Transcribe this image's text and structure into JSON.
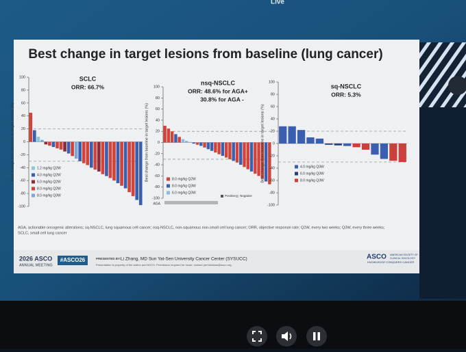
{
  "live": "Live",
  "slide": {
    "title": "Best change in target lesions from baseline (lung cancer)",
    "footnote": [
      "AGA, actionable oncogenic alterations; sq-NSCLC, lung squamous cell cancer; nsq-NSCLC, non-squamous non-small cell lung cancer; ORR, objective response rate; Q2W, every two weeks; Q3W, every three weeks;",
      "SCLC, small cell lung cancer"
    ],
    "meeting": [
      "2026 ASCO",
      "ANNUAL MEETING"
    ],
    "hashtag": "#ASCO26",
    "presented_by": "PRESENTED BY:",
    "presenter": "Li Zhang, MD   Sun Yat-Sen University Cancer Center (SYSUCC)",
    "permission": "Presentation is property of the author and ASCO. Permission required for reuse; contact permissions@asco.org.",
    "logo": "ASCO",
    "logo_sub": [
      "AMERICAN SOCIETY OF",
      "CLINICAL ONCOLOGY"
    ],
    "logo_tag": "KNOWLEDGE CONQUERS CANCER"
  },
  "chart_data": [
    {
      "type": "bar",
      "title": "SCLC",
      "subtitle": [
        "ORR: 66.7%"
      ],
      "y_label": "Best change from baseline in target lesions (%)",
      "ylim": [
        -100,
        100
      ],
      "yticks": [
        100,
        80,
        60,
        40,
        20,
        0,
        -20,
        -40,
        -60,
        -80,
        -100
      ],
      "ref_lines": [
        20,
        -30
      ],
      "series": [
        {
          "name": "1.2 mg/kg Q2W",
          "color": "#8fc6d6",
          "values": [
            null,
            null,
            8,
            null,
            null,
            null,
            null,
            null,
            null,
            null,
            null,
            null,
            null,
            null,
            null,
            null,
            null,
            null,
            null,
            null,
            null,
            null,
            null,
            null,
            null,
            null,
            null,
            null,
            null,
            null
          ]
        },
        {
          "name": "4.0 mg/kg Q2W",
          "color": "#3a5fb0",
          "values": [
            null,
            18,
            null,
            null,
            null,
            null,
            -8,
            null,
            null,
            null,
            -18,
            null,
            null,
            -30,
            null,
            null,
            -40,
            null,
            null,
            null,
            -53,
            null,
            null,
            -64,
            null,
            -72,
            null,
            null,
            -90,
            -98
          ]
        },
        {
          "name": "6.0 mg/kg Q2W",
          "color": "#8b2c3a",
          "values": [
            null,
            null,
            null,
            null,
            -4,
            null,
            null,
            null,
            null,
            -15,
            null,
            null,
            null,
            null,
            null,
            null,
            null,
            null,
            -46,
            null,
            null,
            null,
            null,
            null,
            null,
            null,
            null,
            null,
            null,
            null
          ]
        },
        {
          "name": "8.0 mg/kg Q2W",
          "color": "#d0443a",
          "values": [
            45,
            null,
            null,
            null,
            null,
            -6,
            null,
            -10,
            -12,
            null,
            null,
            -22,
            null,
            null,
            -33,
            -36,
            null,
            -43,
            null,
            -50,
            null,
            -56,
            -60,
            null,
            -68,
            null,
            -78,
            -84,
            null,
            null
          ]
        },
        {
          "name": "8.0 mg/kg Q3W",
          "color": "#7fa7d6",
          "values": [
            null,
            null,
            null,
            3,
            null,
            null,
            null,
            null,
            null,
            null,
            null,
            null,
            -26,
            null,
            null,
            null,
            null,
            null,
            null,
            null,
            null,
            null,
            null,
            null,
            null,
            null,
            null,
            null,
            null,
            null
          ]
        }
      ]
    },
    {
      "type": "bar",
      "title": "nsq-NSCLC",
      "subtitle": [
        "ORR: 48.6% for AGA+",
        "30.8% for AGA -"
      ],
      "y_label": "Best change from baseline in target lesions (%)",
      "ylim": [
        -100,
        100
      ],
      "yticks": [
        100,
        80,
        60,
        40,
        20,
        0,
        -20,
        -40,
        -60,
        -80,
        -100
      ],
      "ref_lines": [
        20,
        -30
      ],
      "series": [
        {
          "name": "8.0 mg/kg Q2W",
          "color": "#d0443a",
          "values": [
            30,
            25,
            20,
            null,
            10,
            null,
            null,
            null,
            null,
            -4,
            null,
            -9,
            null,
            null,
            -18,
            -21,
            null,
            -27,
            -30,
            null,
            -36,
            null,
            -44,
            -48,
            null,
            -56,
            -60,
            -65,
            null,
            -75
          ]
        },
        {
          "name": "8.0 mg/kg Q3W",
          "color": "#3a5fb0",
          "values": [
            null,
            null,
            null,
            15,
            null,
            null,
            null,
            null,
            -2,
            null,
            -6,
            null,
            -12,
            -15,
            null,
            null,
            -24,
            null,
            null,
            -33,
            null,
            -40,
            null,
            null,
            -52,
            null,
            null,
            null,
            -70,
            null
          ]
        },
        {
          "name": "6.0 mg/kg Q3W",
          "color": "#8fb8dc",
          "values": [
            null,
            null,
            null,
            null,
            null,
            6,
            3,
            1,
            null,
            null,
            null,
            null,
            null,
            null,
            null,
            null,
            null,
            null,
            null,
            null,
            null,
            null,
            null,
            null,
            null,
            null,
            null,
            null,
            null,
            null
          ]
        }
      ],
      "aga": {
        "label": "AGA",
        "legend": [
          {
            "name": "Positive",
            "color": "#555555"
          },
          {
            "name": "Negative",
            "color": "#bbbbbb"
          }
        ]
      }
    },
    {
      "type": "bar",
      "title": "sq-NSCLC",
      "subtitle": [
        "ORR: 5.3%"
      ],
      "y_label": "Best change from baseline in target lesions (%)",
      "ylim": [
        -100,
        100
      ],
      "yticks": [
        100,
        80,
        60,
        40,
        20,
        0,
        -20,
        -40,
        -60,
        -80,
        -100
      ],
      "ref_lines": [
        20,
        -30
      ],
      "series": [
        {
          "name": "4.0 mg/kg Q3W",
          "color": "#3a5fb0",
          "values": [
            28,
            28,
            22,
            10,
            8,
            null,
            null,
            -4,
            null,
            null,
            -18,
            -25,
            null,
            null
          ]
        },
        {
          "name": "6.0 mg/kg Q3W",
          "color": "#2a3f7a",
          "values": [
            null,
            null,
            null,
            null,
            null,
            -2,
            -3,
            null,
            null,
            null,
            null,
            null,
            null,
            null
          ]
        },
        {
          "name": "8.0 mg/kg Q3W",
          "color": "#c9413a",
          "values": [
            null,
            null,
            null,
            null,
            null,
            null,
            null,
            null,
            -6,
            -10,
            null,
            null,
            -28,
            -30
          ]
        }
      ]
    }
  ]
}
